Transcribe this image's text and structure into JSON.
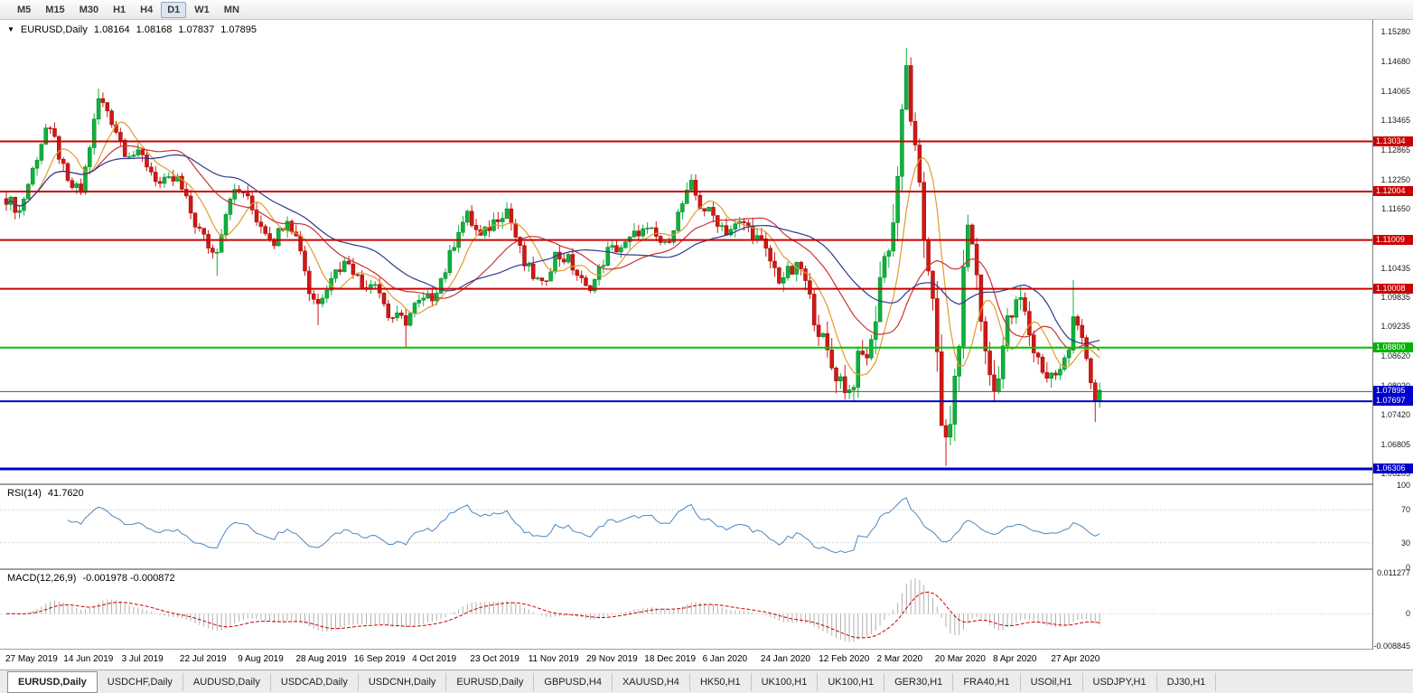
{
  "toolbar": {
    "timeframes": [
      {
        "label": "M5",
        "active": false
      },
      {
        "label": "M15",
        "active": false
      },
      {
        "label": "M30",
        "active": false
      },
      {
        "label": "H1",
        "active": false
      },
      {
        "label": "H4",
        "active": false
      },
      {
        "label": "D1",
        "active": true
      },
      {
        "label": "W1",
        "active": false
      },
      {
        "label": "MN",
        "active": false
      }
    ]
  },
  "header": {
    "symbol": "EURUSD,Daily",
    "open": "1.08164",
    "high": "1.08168",
    "low": "1.07837",
    "close": "1.07895"
  },
  "price_axis": {
    "labels": [
      "1.15280",
      "1.14680",
      "1.14065",
      "1.13465",
      "1.12865",
      "1.12250",
      "1.11650",
      "1.10435",
      "1.09835",
      "1.09235",
      "1.08620",
      "1.08020",
      "1.07420",
      "1.06805",
      "1.06205"
    ],
    "badges": [
      {
        "text": "1.13034",
        "price": 1.13034,
        "color": "#cc0000"
      },
      {
        "text": "1.12004",
        "price": 1.12004,
        "color": "#cc0000"
      },
      {
        "text": "1.11009",
        "price": 1.11009,
        "color": "#cc0000"
      },
      {
        "text": "1.10008",
        "price": 1.10008,
        "color": "#cc0000"
      },
      {
        "text": "1.08800",
        "price": 1.088,
        "color": "#00b400"
      },
      {
        "text": "1.07895",
        "price": 1.07895,
        "color": "#0000cc"
      },
      {
        "text": "1.07697",
        "price": 1.07697,
        "color": "#0000cc"
      },
      {
        "text": "1.06306",
        "price": 1.06306,
        "color": "#0000cc"
      }
    ]
  },
  "rsi_pane": {
    "label": "RSI(14)",
    "value": "41.7620",
    "axis_labels": [
      "100",
      "70",
      "30",
      "0"
    ],
    "levels": [
      70,
      30
    ],
    "color": "#4a86c0"
  },
  "macd_pane": {
    "label": "MACD(12,26,9)",
    "values": "-0.001978 -0.000872",
    "axis_labels": [
      "0.011277",
      "0",
      "-0.008845"
    ],
    "range": [
      0.0113,
      -0.0089
    ],
    "histogram_color": "#b0b0b0",
    "signal_color": "#cc0000"
  },
  "tabs": [
    {
      "label": "EURUSD,Daily",
      "active": true
    },
    {
      "label": "USDCHF,Daily",
      "active": false
    },
    {
      "label": "AUDUSD,Daily",
      "active": false
    },
    {
      "label": "USDCAD,Daily",
      "active": false
    },
    {
      "label": "USDCNH,Daily",
      "active": false
    },
    {
      "label": "EURUSD,Daily",
      "active": false
    },
    {
      "label": "GBPUSD,H4",
      "active": false
    },
    {
      "label": "XAUUSD,H4",
      "active": false
    },
    {
      "label": "HK50,H1",
      "active": false
    },
    {
      "label": "UK100,H1",
      "active": false
    },
    {
      "label": "UK100,H1",
      "active": false
    },
    {
      "label": "GER30,H1",
      "active": false
    },
    {
      "label": "FRA40,H1",
      "active": false
    },
    {
      "label": "USOil,H1",
      "active": false
    },
    {
      "label": "USDJPY,H1",
      "active": false
    },
    {
      "label": "DJ30,H1",
      "active": false
    }
  ],
  "chart_data": {
    "type": "candlestick",
    "symbol": "EURUSD",
    "timeframe": "Daily",
    "current_ohlc": {
      "open": 1.08164,
      "high": 1.08168,
      "low": 1.07837,
      "close": 1.07895
    },
    "current_price": 1.07895,
    "current_price_line_color": "#555555",
    "price_range": [
      1.0601,
      1.1553
    ],
    "candle_count": 250,
    "x_tick_labels": [
      "27 May 2019",
      "14 Jun 2019",
      "3 Jul 2019",
      "22 Jul 2019",
      "9 Aug 2019",
      "28 Aug 2019",
      "16 Sep 2019",
      "4 Oct 2019",
      "23 Oct 2019",
      "11 Nov 2019",
      "29 Nov 2019",
      "18 Dec 2019",
      "6 Jan 2020",
      "24 Jan 2020",
      "12 Feb 2020",
      "2 Mar 2020",
      "20 Mar 2020",
      "8 Apr 2020",
      "27 Apr 2020"
    ],
    "colors": {
      "up": "#0db33c",
      "up_border": "#067a24",
      "down": "#d31712",
      "down_border": "#8e0c09"
    },
    "close_anchors": [
      [
        0,
        1.1187
      ],
      [
        3,
        1.116
      ],
      [
        6,
        1.1245
      ],
      [
        9,
        1.133
      ],
      [
        11,
        1.1305
      ],
      [
        14,
        1.1215
      ],
      [
        17,
        1.12
      ],
      [
        21,
        1.139
      ],
      [
        23,
        1.1368
      ],
      [
        27,
        1.1285
      ],
      [
        31,
        1.127
      ],
      [
        35,
        1.1215
      ],
      [
        39,
        1.1225
      ],
      [
        43,
        1.1135
      ],
      [
        47,
        1.1075
      ],
      [
        48,
        1.1085
      ],
      [
        51,
        1.1195
      ],
      [
        54,
        1.12
      ],
      [
        57,
        1.1145
      ],
      [
        61,
        1.11
      ],
      [
        64,
        1.115
      ],
      [
        67,
        1.1085
      ],
      [
        69,
        1.0995
      ],
      [
        71,
        1.097
      ],
      [
        74,
        1.103
      ],
      [
        78,
        1.106
      ],
      [
        81,
        1.1005
      ],
      [
        84,
        1.102
      ],
      [
        87,
        1.0945
      ],
      [
        91,
        1.0935
      ],
      [
        93,
        1.0965
      ],
      [
        97,
        1.0985
      ],
      [
        100,
        1.104
      ],
      [
        103,
        1.1125
      ],
      [
        105,
        1.115
      ],
      [
        108,
        1.1105
      ],
      [
        112,
        1.115
      ],
      [
        114,
        1.1165
      ],
      [
        118,
        1.105
      ],
      [
        122,
        1.1005
      ],
      [
        125,
        1.107
      ],
      [
        128,
        1.106
      ],
      [
        132,
        1.1
      ],
      [
        134,
        1.1018
      ],
      [
        137,
        1.1078
      ],
      [
        141,
        1.109
      ],
      [
        144,
        1.112
      ],
      [
        147,
        1.1115
      ],
      [
        150,
        1.1087
      ],
      [
        154,
        1.1175
      ],
      [
        156,
        1.1212
      ],
      [
        158,
        1.1172
      ],
      [
        161,
        1.115
      ],
      [
        164,
        1.112
      ],
      [
        168,
        1.1136
      ],
      [
        172,
        1.1093
      ],
      [
        176,
        1.1022
      ],
      [
        178,
        1.1032
      ],
      [
        181,
        1.1043
      ],
      [
        184,
        1.0945
      ],
      [
        188,
        1.084
      ],
      [
        192,
        1.079
      ],
      [
        194,
        1.0848
      ],
      [
        197,
        1.088
      ],
      [
        199,
        1.1026
      ],
      [
        202,
        1.1135
      ],
      [
        205,
        1.145
      ],
      [
        207,
        1.127
      ],
      [
        209,
        1.1105
      ],
      [
        211,
        1.1
      ],
      [
        213,
        1.07
      ],
      [
        214,
        1.069
      ],
      [
        216,
        1.079
      ],
      [
        219,
        1.114
      ],
      [
        221,
        1.103
      ],
      [
        223,
        1.086
      ],
      [
        225,
        1.079
      ],
      [
        228,
        1.093
      ],
      [
        231,
        1.098
      ],
      [
        234,
        1.0875
      ],
      [
        237,
        1.082
      ],
      [
        240,
        1.083
      ],
      [
        242,
        1.0875
      ],
      [
        243,
        1.0955
      ],
      [
        245,
        1.0905
      ],
      [
        247,
        1.0795
      ],
      [
        248,
        1.077
      ],
      [
        249,
        1.079
      ]
    ],
    "wick_overrides": [
      {
        "i": 21,
        "type": "h",
        "price": 1.1412
      },
      {
        "i": 48,
        "type": "l",
        "price": 1.1027
      },
      {
        "i": 71,
        "type": "l",
        "price": 1.0926
      },
      {
        "i": 91,
        "type": "l",
        "price": 1.0879
      },
      {
        "i": 192,
        "type": "l",
        "price": 1.0778
      },
      {
        "i": 205,
        "type": "h",
        "price": 1.1495
      },
      {
        "i": 214,
        "type": "l",
        "price": 1.0637
      },
      {
        "i": 243,
        "type": "h",
        "price": 1.1019
      },
      {
        "i": 248,
        "type": "l",
        "price": 1.0727
      }
    ],
    "moving_averages": [
      {
        "period": 8,
        "color": "#e09c2c"
      },
      {
        "period": 21,
        "color": "#cc3333"
      },
      {
        "period": 34,
        "color": "#2b3a8f"
      }
    ],
    "h_lines": [
      {
        "price": 1.13034,
        "color": "#cc0000",
        "width": 2
      },
      {
        "price": 1.12004,
        "color": "#cc0000",
        "width": 2
      },
      {
        "price": 1.11009,
        "color": "#cc0000",
        "width": 2
      },
      {
        "price": 1.10008,
        "color": "#cc0000",
        "width": 2
      },
      {
        "price": 1.088,
        "color": "#00c400",
        "width": 2
      },
      {
        "price": 1.07697,
        "color": "#0000cc",
        "width": 2
      },
      {
        "price": 1.06306,
        "color": "#0000cc",
        "width": 3
      }
    ],
    "indicators": [
      {
        "name": "RSI",
        "period": 14,
        "value": 41.762
      },
      {
        "name": "MACD",
        "fast": 12,
        "slow": 26,
        "signal": 9,
        "value": -0.001978,
        "signal_value": -0.000872
      }
    ]
  }
}
